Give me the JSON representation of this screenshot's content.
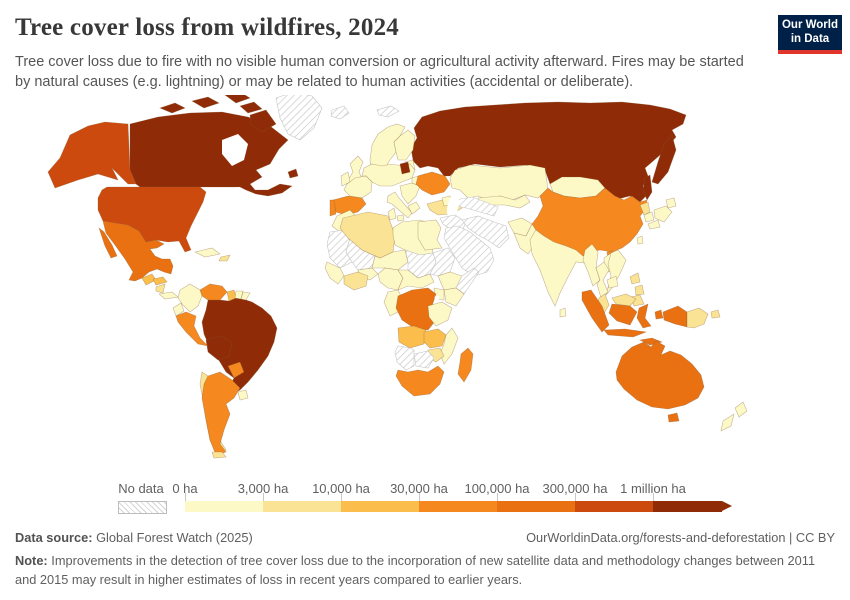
{
  "header": {
    "title": "Tree cover loss from wildfires, 2024",
    "subtitle": "Tree cover loss due to fire with no visible human conversion or agricultural activity afterward. Fires may be started by natural causes (e.g. lightning) or may be related to human activities (accidental or deliberate).",
    "logo": {
      "line1": "Our World",
      "line2": "in Data",
      "bg": "#002147",
      "accent": "#e0352b"
    }
  },
  "legend": {
    "no_data_label": "No data",
    "tick_labels": [
      "0 ha",
      "3,000 ha",
      "10,000 ha",
      "30,000 ha",
      "100,000 ha",
      "300,000 ha",
      "1 million ha"
    ],
    "bin_keys": [
      "c0",
      "c1",
      "c2",
      "c3",
      "c4",
      "c5",
      "c6"
    ]
  },
  "footer": {
    "source_label": "Data source:",
    "source_text": "Global Forest Watch (2025)",
    "link_text": "OurWorldinData.org/forests-and-deforestation | CC BY",
    "note_label": "Note:",
    "note_text": "Improvements in the detection of tree cover loss due to the incorporation of new satellite data and methodology changes between 2011 and 2015 may result in higher estimates of loss in recent years compared to earlier years."
  },
  "chart_data": {
    "type": "choropleth",
    "title": "Tree cover loss from wildfires, 2024",
    "year": 2024,
    "unit": "hectares of tree cover loss",
    "legend_thresholds": [
      "0 ha",
      "3,000 ha",
      "10,000 ha",
      "30,000 ha",
      "100,000 ha",
      "300,000 ha",
      "1 million ha"
    ],
    "bins": {
      "no_data": {
        "label": "No data",
        "color": "hatch"
      },
      "c0": {
        "label": "0 - 3,000 ha",
        "color": "#fcf9c7"
      },
      "c1": {
        "label": "3,000 - 10,000 ha",
        "color": "#fae395"
      },
      "c2": {
        "label": "10,000 - 30,000 ha",
        "color": "#fbbd4b"
      },
      "c3": {
        "label": "30,000 - 100,000 ha",
        "color": "#f5881f"
      },
      "c4": {
        "label": "100,000 - 300,000 ha",
        "color": "#e97112"
      },
      "c5": {
        "label": "300,000 ha - 1 million ha",
        "color": "#cd4a0e"
      },
      "c6": {
        "label": "1 million ha and more",
        "color": "#8f2b06"
      }
    },
    "countries": {
      "canada": "c6",
      "newfoundland": "c6",
      "greenland": "no_data",
      "alaska": "c5",
      "united-states": "c5",
      "mexico": "c4",
      "guatemala": "c2",
      "honduras": "c2",
      "nicaragua": "c1",
      "costa-rica-panama": "c0",
      "cuba": "c0",
      "hispaniola": "c1",
      "venezuela": "c3",
      "colombia": "c0",
      "guyana": "c2",
      "suriname": "c0",
      "french-guiana": "c0",
      "ecuador": "c0",
      "peru": "c3",
      "brazil": "c6",
      "bolivia": "c6",
      "paraguay": "c3",
      "chile": "c1",
      "argentina": "c3",
      "uruguay": "c0",
      "tierra-del-fuego": "c1",
      "iceland": "no_data",
      "svalbard": "no_data",
      "norway-sweden": "c0",
      "finland": "c0",
      "denmark": "c0",
      "baltics": "c0",
      "united-kingdom": "c0",
      "ireland": "c0",
      "france": "c0",
      "central-europe": "c0",
      "spain": "c3",
      "portugal": "c3",
      "italy": "c0",
      "balkans": "c0",
      "greece": "c0",
      "romania-east-europe": "c0",
      "belarus": "c6",
      "ukraine": "c3",
      "turkey": "c1",
      "russia": "c6",
      "kamchatka": "c6",
      "sakhalin": "c6",
      "kazakhstan": "c0",
      "central-asia": "c0",
      "turkmenistan": "no_data",
      "caucasus": "c0",
      "syria-iraq": "no_data",
      "iran": "no_data",
      "arabia": "no_data",
      "afghanistan": "c0",
      "pakistan": "c0",
      "india": "c0",
      "sri-lanka": "c0",
      "china": "c3",
      "hainan": "c3",
      "taiwan": "c0",
      "mongolia": "c0",
      "north-korea": "c1",
      "south-korea": "c0",
      "japan": "c0",
      "myanmar": "c0",
      "thailand": "c0",
      "laos": "c0",
      "vietnam": "c0",
      "cambodia": "c0",
      "malaysia-peninsula": "c1",
      "malaysia-borneo": "c1",
      "philippines": "c1",
      "sumatra": "c4",
      "java": "c4",
      "kalimantan": "c4",
      "sulawesi": "c4",
      "lesser-sunda": "c4",
      "maluku": "c4",
      "indonesian-papua": "c4",
      "papua-new-guinea": "c1",
      "new-britain": "c1",
      "australia": "c4",
      "tasmania": "c4",
      "new-zealand": "c0",
      "morocco": "c0",
      "western-sahara-mauritania": "no_data",
      "mali": "no_data",
      "algeria": "c1",
      "tunisia": "c0",
      "libya": "c0",
      "egypt": "c0",
      "sudan": "no_data",
      "chad": "no_data",
      "niger": "c0",
      "senegal-guinea": "c0",
      "burkina": "c0",
      "ivory-coast-ghana": "c1",
      "nigeria": "c0",
      "cameroon-car": "c0",
      "ethiopia": "c0",
      "somalia": "no_data",
      "kenya": "c0",
      "uganda": "c0",
      "congo-gabon": "c0",
      "democratic-republic-of-congo": "c4",
      "tanzania": "c0",
      "angola": "c2",
      "zambia": "c2",
      "malawi-mozambique": "c0",
      "zimbabwe": "c1",
      "namibia": "no_data",
      "botswana": "no_data",
      "south-africa": "c3",
      "madagascar": "c3"
    }
  }
}
